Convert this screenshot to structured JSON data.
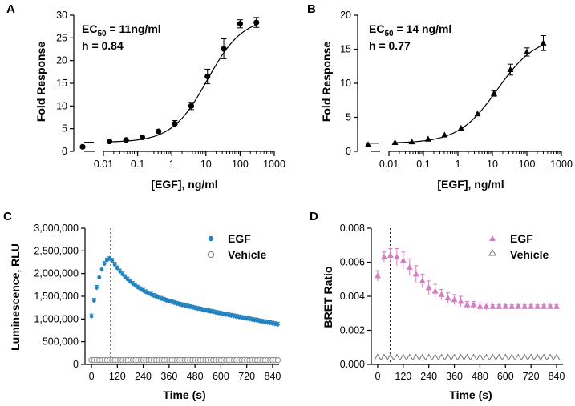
{
  "chart_data": [
    {
      "panel": "A",
      "type": "scatter",
      "xscale": "log",
      "xlabel": "[EGF], ng/ml",
      "ylabel": "Fold Response",
      "ylim": [
        0,
        30
      ],
      "yticks": [
        0,
        5,
        10,
        15,
        20,
        25,
        30
      ],
      "xticks": [
        0.01,
        0.1,
        1,
        10,
        100,
        1000
      ],
      "xtick_labels": [
        "0.01",
        "0.1",
        "1",
        "10",
        "100",
        "1000"
      ],
      "annotation": {
        "ec50": "EC50 = 11ng/ml",
        "hill": "h = 0.84"
      },
      "baseline_point": {
        "y": 1.0,
        "err": 0
      },
      "x": [
        0.015,
        0.046,
        0.137,
        0.41,
        1.23,
        3.7,
        11.1,
        33.3,
        100,
        300
      ],
      "y": [
        2.2,
        2.5,
        3.1,
        4.4,
        6.1,
        10.0,
        16.5,
        22.6,
        28.1,
        28.4
      ],
      "err": [
        0.2,
        0.25,
        0.3,
        0.35,
        0.7,
        0.8,
        1.6,
        2.2,
        0.9,
        1.1
      ],
      "fit": {
        "bottom": 2.0,
        "top": 29.5,
        "ec50": 11,
        "hill": 0.84
      }
    },
    {
      "panel": "B",
      "type": "scatter",
      "xscale": "log",
      "xlabel": "[EGF], ng/ml",
      "ylabel": "Fold Response",
      "ylim": [
        0,
        20
      ],
      "yticks": [
        0,
        5,
        10,
        15,
        20
      ],
      "xticks": [
        0.01,
        0.1,
        1,
        10,
        100,
        1000
      ],
      "xtick_labels": [
        "0.01",
        "0.1",
        "1",
        "10",
        "100",
        "1000"
      ],
      "annotation": {
        "ec50": "EC50 = 14 ng/ml",
        "hill": "h = 0.77"
      },
      "baseline_point": {
        "y": 1.0,
        "err": 0.3
      },
      "x": [
        0.015,
        0.046,
        0.137,
        0.41,
        1.23,
        3.7,
        11.1,
        33.3,
        100,
        300
      ],
      "y": [
        1.3,
        1.4,
        1.8,
        2.4,
        3.4,
        5.5,
        8.5,
        12.0,
        14.6,
        15.9
      ],
      "err": [
        0.1,
        0.1,
        0.15,
        0.2,
        0.25,
        0.3,
        0.4,
        0.8,
        0.6,
        1.1
      ],
      "fit": {
        "bottom": 1.2,
        "top": 17.0,
        "ec50": 14,
        "hill": 0.77
      }
    },
    {
      "panel": "C",
      "type": "scatter",
      "xlabel": "Time (s)",
      "ylabel": "Luminescence, RLU",
      "xlim": [
        -30,
        870
      ],
      "ylim": [
        0,
        3000000
      ],
      "xticks": [
        0,
        120,
        240,
        360,
        480,
        600,
        720,
        840
      ],
      "yticks": [
        0,
        500000,
        1000000,
        1500000,
        2000000,
        2500000,
        3000000
      ],
      "ytick_labels": [
        "0",
        "500,000",
        "1,000,000",
        "1,500,000",
        "2,000,000",
        "2,500,000",
        "3,000,000"
      ],
      "vline_x": 90,
      "series": [
        {
          "name": "EGF",
          "color": "#2483bd",
          "marker": "circle-filled",
          "profile": {
            "start": 0,
            "end": 870,
            "step": 12,
            "y0": 1060000,
            "peak_t": 90,
            "peak_y": 2330000,
            "level1": 1560000,
            "tau1": 110,
            "slope": -880,
            "err": 50000
          }
        },
        {
          "name": "Vehicle",
          "color": "#8a8a8a",
          "marker": "circle-open",
          "profile": {
            "start": 0,
            "end": 870,
            "step": 12,
            "level": 95000
          }
        }
      ],
      "legend": "top-right"
    },
    {
      "panel": "D",
      "type": "scatter",
      "xlabel": "Time (s)",
      "ylabel": "BRET Ratio",
      "xlim": [
        -30,
        870
      ],
      "ylim": [
        0,
        0.008
      ],
      "xticks": [
        0,
        120,
        240,
        360,
        480,
        600,
        720,
        840
      ],
      "yticks": [
        0,
        0.002,
        0.004,
        0.006,
        0.008
      ],
      "ytick_labels": [
        "0.000",
        "0.002",
        "0.004",
        "0.006",
        "0.008"
      ],
      "vline_x": 60,
      "series": [
        {
          "name": "EGF",
          "color": "#d17fc0",
          "marker": "triangle-filled",
          "x": [
            0,
            30,
            60,
            90,
            120,
            150,
            180,
            210,
            240,
            270,
            300,
            330,
            360,
            390,
            420,
            450,
            480,
            510,
            540,
            570,
            600,
            630,
            660,
            690,
            720,
            750,
            780,
            810,
            840
          ],
          "y": [
            0.0052,
            0.0063,
            0.0064,
            0.0063,
            0.0061,
            0.0057,
            0.0053,
            0.0049,
            0.0045,
            0.0043,
            0.0041,
            0.0039,
            0.0038,
            0.0037,
            0.0035,
            0.0035,
            0.0034,
            0.0034,
            0.0034,
            0.0034,
            0.0034,
            0.0034,
            0.0034,
            0.0034,
            0.0034,
            0.0034,
            0.0034,
            0.0034,
            0.0034
          ],
          "err": [
            0.0003,
            0.0003,
            0.0004,
            0.0005,
            0.0005,
            0.0005,
            0.0005,
            0.0004,
            0.0004,
            0.0004,
            0.0003,
            0.0003,
            0.0003,
            0.0003,
            0.0002,
            0.0002,
            0.0002,
            0.0002,
            0.0001,
            0.0001,
            0.0001,
            0.0001,
            0.0001,
            0.0001,
            0.0001,
            0.0001,
            0.0001,
            0.0001,
            0.0001
          ]
        },
        {
          "name": "Vehicle",
          "color": "#777777",
          "marker": "triangle-open",
          "x": [
            0,
            30,
            60,
            90,
            120,
            150,
            180,
            210,
            240,
            270,
            300,
            330,
            360,
            390,
            420,
            450,
            480,
            510,
            540,
            570,
            600,
            630,
            660,
            690,
            720,
            750,
            780,
            810,
            840
          ],
          "y": [
            0.0004,
            0.0004,
            0.0004,
            0.0004,
            0.0004,
            0.0004,
            0.0004,
            0.0004,
            0.0004,
            0.0004,
            0.0004,
            0.0004,
            0.0004,
            0.0004,
            0.0004,
            0.0004,
            0.0004,
            0.0004,
            0.0004,
            0.0004,
            0.0004,
            0.0004,
            0.0004,
            0.0004,
            0.0004,
            0.0004,
            0.0004,
            0.0004,
            0.0004
          ]
        }
      ],
      "legend": "top-right"
    }
  ]
}
